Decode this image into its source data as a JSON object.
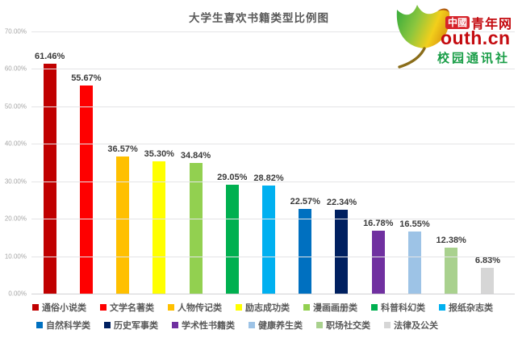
{
  "page": {
    "background": "#ffffff"
  },
  "header": {
    "title": "大学生喜欢书籍类型比例图"
  },
  "logo": {
    "leaf_icon": "ginkgo-leaf-icon",
    "badge": "中國",
    "brand": "青年网",
    "wordmark": "outh.cn",
    "subtitle": "校园通讯社",
    "red": "#c40b10",
    "green": "#1a9e48"
  },
  "chart_data": {
    "type": "bar",
    "title": "大学生喜欢书籍类型比例图",
    "categories": [
      "通俗小说类",
      "文学名著类",
      "人物传记类",
      "励志成功类",
      "漫画画册类",
      "科普科幻类",
      "报纸杂志类",
      "自然科学类",
      "历史军事类",
      "学术性书籍类",
      "健康养生类",
      "职场社交类",
      "法律及公关"
    ],
    "values": [
      61.46,
      55.67,
      36.57,
      35.3,
      34.84,
      29.05,
      28.82,
      22.57,
      22.34,
      16.78,
      16.55,
      12.38,
      6.83
    ],
    "data_labels": [
      "61.46%",
      "55.67%",
      "36.57%",
      "35.30%",
      "34.84%",
      "29.05%",
      "28.82%",
      "22.57%",
      "22.34%",
      "16.78%",
      "16.55%",
      "12.38%",
      "6.83%"
    ],
    "colors": [
      "#c00000",
      "#fe0000",
      "#ffc000",
      "#ffff00",
      "#92d050",
      "#00b050",
      "#00b0f0",
      "#0070c0",
      "#002060",
      "#7030a0",
      "#9dc3e6",
      "#a9d18e",
      "#d6d6d6"
    ],
    "xlabel": "",
    "ylabel": "",
    "ylim": [
      0,
      70
    ],
    "ytick_step": 10,
    "yticks": [
      "70.00%",
      "60.00%",
      "50.00%",
      "40.00%",
      "30.00%",
      "20.00%",
      "10.00%",
      "0.00%"
    ],
    "grid": true,
    "legend_position": "bottom",
    "legend_row_split": 7
  }
}
